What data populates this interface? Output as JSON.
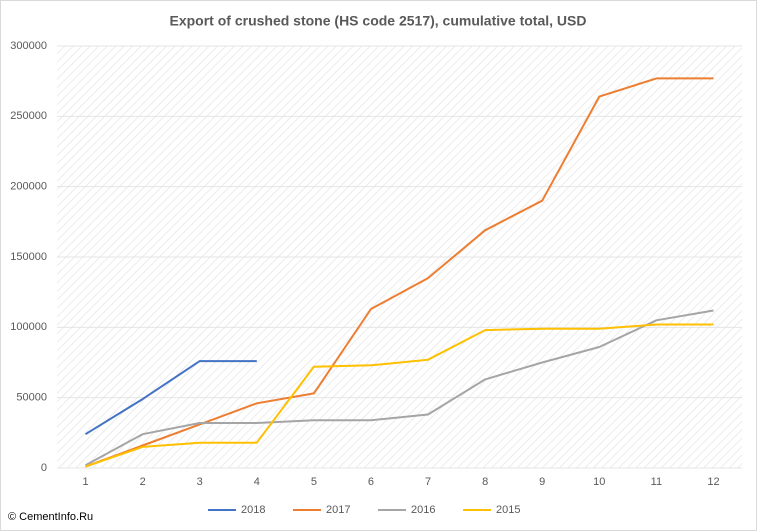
{
  "chart_data": {
    "type": "line",
    "title": "Export of crushed stone (HS code 2517), cumulative total, USD",
    "categories": [
      "1",
      "2",
      "3",
      "4",
      "5",
      "6",
      "7",
      "8",
      "9",
      "10",
      "11",
      "12"
    ],
    "series": [
      {
        "name": "2018",
        "color": "#4472c4",
        "values": [
          24000,
          49000,
          76000,
          76000,
          null,
          null,
          null,
          null,
          null,
          null,
          null,
          null
        ]
      },
      {
        "name": "2017",
        "color": "#ed7d31",
        "values": [
          1000,
          16000,
          31000,
          46000,
          53000,
          113000,
          135000,
          169000,
          190000,
          264000,
          277000,
          277000
        ]
      },
      {
        "name": "2016",
        "color": "#a5a5a5",
        "values": [
          2000,
          24000,
          32000,
          32000,
          34000,
          34000,
          38000,
          63000,
          75000,
          86000,
          105000,
          112000
        ]
      },
      {
        "name": "2015",
        "color": "#ffc000",
        "values": [
          1000,
          15000,
          18000,
          18000,
          72000,
          73000,
          77000,
          98000,
          99000,
          99000,
          102000,
          102000
        ]
      }
    ],
    "ylim": [
      0,
      300000
    ],
    "yticks": [
      0,
      50000,
      100000,
      150000,
      200000,
      250000,
      300000
    ],
    "grid": true,
    "legend": "bottom"
  },
  "watermark": "© CementInfo.Ru"
}
